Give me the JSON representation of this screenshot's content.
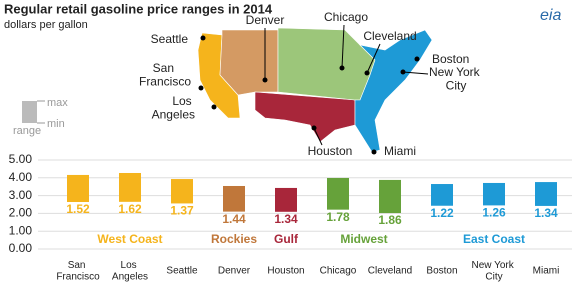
{
  "chart_data": {
    "type": "floating-bar",
    "title": "Regular retail gasoline price ranges in 2014",
    "subtitle": "dollars per gallon",
    "logo": "eia",
    "legend_labels": [
      "max",
      "min",
      "range"
    ],
    "ylim": [
      0,
      5
    ],
    "yticks": [
      {
        "value": 0,
        "label": "0.00"
      },
      {
        "value": 1,
        "label": "1.00"
      },
      {
        "value": 2,
        "label": "2.00"
      },
      {
        "value": 3,
        "label": "3.00"
      },
      {
        "value": 4,
        "label": "4.00"
      },
      {
        "value": 5,
        "label": "5.00"
      }
    ],
    "grid": true,
    "groups": [
      {
        "name": "West Coast",
        "color": "#f5b41c",
        "categories": [
          "San Francisco",
          "Los Angeles",
          "Seattle"
        ],
        "max": [
          4.16,
          4.27,
          3.93
        ],
        "min": [
          2.64,
          2.65,
          2.56
        ],
        "ranges": [
          1.52,
          1.62,
          1.37
        ]
      },
      {
        "name": "Rockies",
        "color": "#c0773a",
        "categories": [
          "Denver"
        ],
        "max": [
          3.54
        ],
        "min": [
          2.1
        ],
        "ranges": [
          1.44
        ]
      },
      {
        "name": "Gulf",
        "color": "#a8263a",
        "categories": [
          "Houston"
        ],
        "max": [
          3.43
        ],
        "min": [
          2.09
        ],
        "ranges": [
          1.34
        ]
      },
      {
        "name": "Midwest",
        "color": "#66a23a",
        "categories": [
          "Chicago",
          "Cleveland"
        ],
        "max": [
          3.99,
          3.88
        ],
        "min": [
          2.21,
          2.02
        ],
        "ranges": [
          1.78,
          1.86
        ]
      },
      {
        "name": "East Coast",
        "color": "#1e9ad6",
        "categories": [
          "Boston",
          "New York City",
          "Miami"
        ],
        "max": [
          3.65,
          3.71,
          3.76
        ],
        "min": [
          2.43,
          2.45,
          2.42
        ],
        "ranges": [
          1.22,
          1.26,
          1.34
        ]
      }
    ]
  }
}
